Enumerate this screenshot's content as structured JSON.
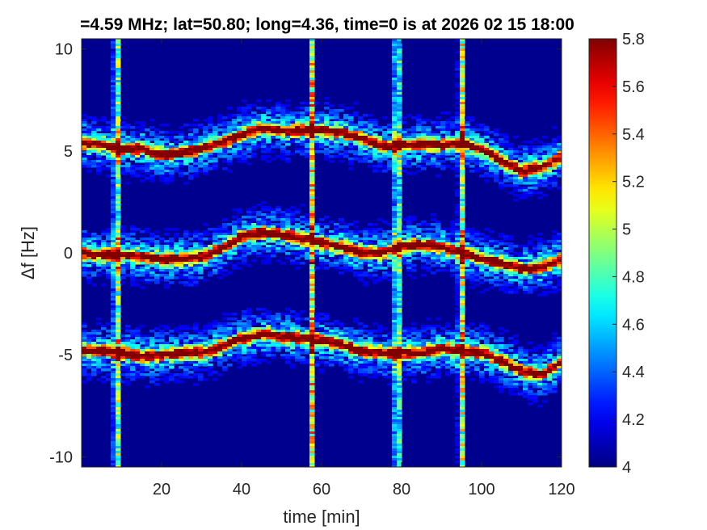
{
  "chart_data": {
    "type": "heatmap",
    "title": "=4.59 MHz;  lat=50.80; long=4.36, time=0 is at 2026 02 15 18:00",
    "xlabel": "time [min]",
    "ylabel": "Δf [Hz]",
    "xlim": [
      0,
      120
    ],
    "ylim": [
      -10.5,
      10.5
    ],
    "x_ticks": [
      20,
      40,
      60,
      80,
      100,
      120
    ],
    "x_tick_labels": [
      "20",
      "40",
      "60",
      "80",
      "100",
      "120"
    ],
    "y_ticks": [
      -10,
      -5,
      0,
      5,
      10
    ],
    "y_tick_labels": [
      "-10",
      "-5",
      "0",
      "5",
      "10"
    ],
    "colorbar": {
      "colormap": "jet",
      "clim": [
        4,
        5.8
      ],
      "ticks": [
        4,
        4.2,
        4.4,
        4.6,
        4.8,
        5,
        5.2,
        5.4,
        5.6,
        5.8
      ],
      "tick_labels": [
        "4",
        "4.2",
        "4.4",
        "4.6",
        "4.8",
        "5",
        "5.2",
        "5.4",
        "5.6",
        "5.8"
      ]
    },
    "background_level": 4.05,
    "grid": false,
    "traces": [
      {
        "x": [
          0,
          5,
          10,
          15,
          20,
          25,
          30,
          35,
          40,
          45,
          50,
          55,
          60,
          65,
          70,
          75,
          80,
          85,
          90,
          95,
          100,
          105,
          110,
          115,
          120
        ],
        "y": [
          5.4,
          5.3,
          5.1,
          5.1,
          4.8,
          4.9,
          5.1,
          5.4,
          5.8,
          6.1,
          6.0,
          6.0,
          6.0,
          5.9,
          5.6,
          5.2,
          5.3,
          5.3,
          5.3,
          5.4,
          5.1,
          4.5,
          4.0,
          4.2,
          4.7
        ]
      },
      {
        "x": [
          0,
          5,
          10,
          15,
          20,
          25,
          30,
          35,
          40,
          45,
          50,
          55,
          60,
          65,
          70,
          75,
          80,
          85,
          90,
          95,
          100,
          105,
          110,
          115,
          120
        ],
        "y": [
          0.0,
          -0.1,
          -0.1,
          -0.2,
          -0.3,
          -0.3,
          -0.2,
          0.2,
          0.8,
          1.0,
          0.9,
          0.7,
          0.5,
          0.3,
          0.0,
          0.0,
          0.3,
          0.4,
          0.3,
          0.0,
          -0.3,
          -0.5,
          -0.8,
          -0.7,
          -0.3
        ]
      },
      {
        "x": [
          0,
          5,
          10,
          15,
          20,
          25,
          30,
          35,
          40,
          45,
          50,
          55,
          60,
          65,
          70,
          75,
          80,
          85,
          90,
          95,
          100,
          105,
          110,
          115,
          120
        ],
        "y": [
          -4.8,
          -4.8,
          -4.9,
          -5.1,
          -5.0,
          -4.9,
          -4.9,
          -4.6,
          -4.2,
          -4.0,
          -4.1,
          -4.2,
          -4.3,
          -4.5,
          -4.8,
          -4.9,
          -4.9,
          -4.9,
          -4.7,
          -4.8,
          -4.9,
          -5.3,
          -5.8,
          -6.0,
          -5.3
        ]
      }
    ],
    "vertical_bursts": [
      8.8,
      57.6,
      78.9,
      95.0
    ]
  }
}
